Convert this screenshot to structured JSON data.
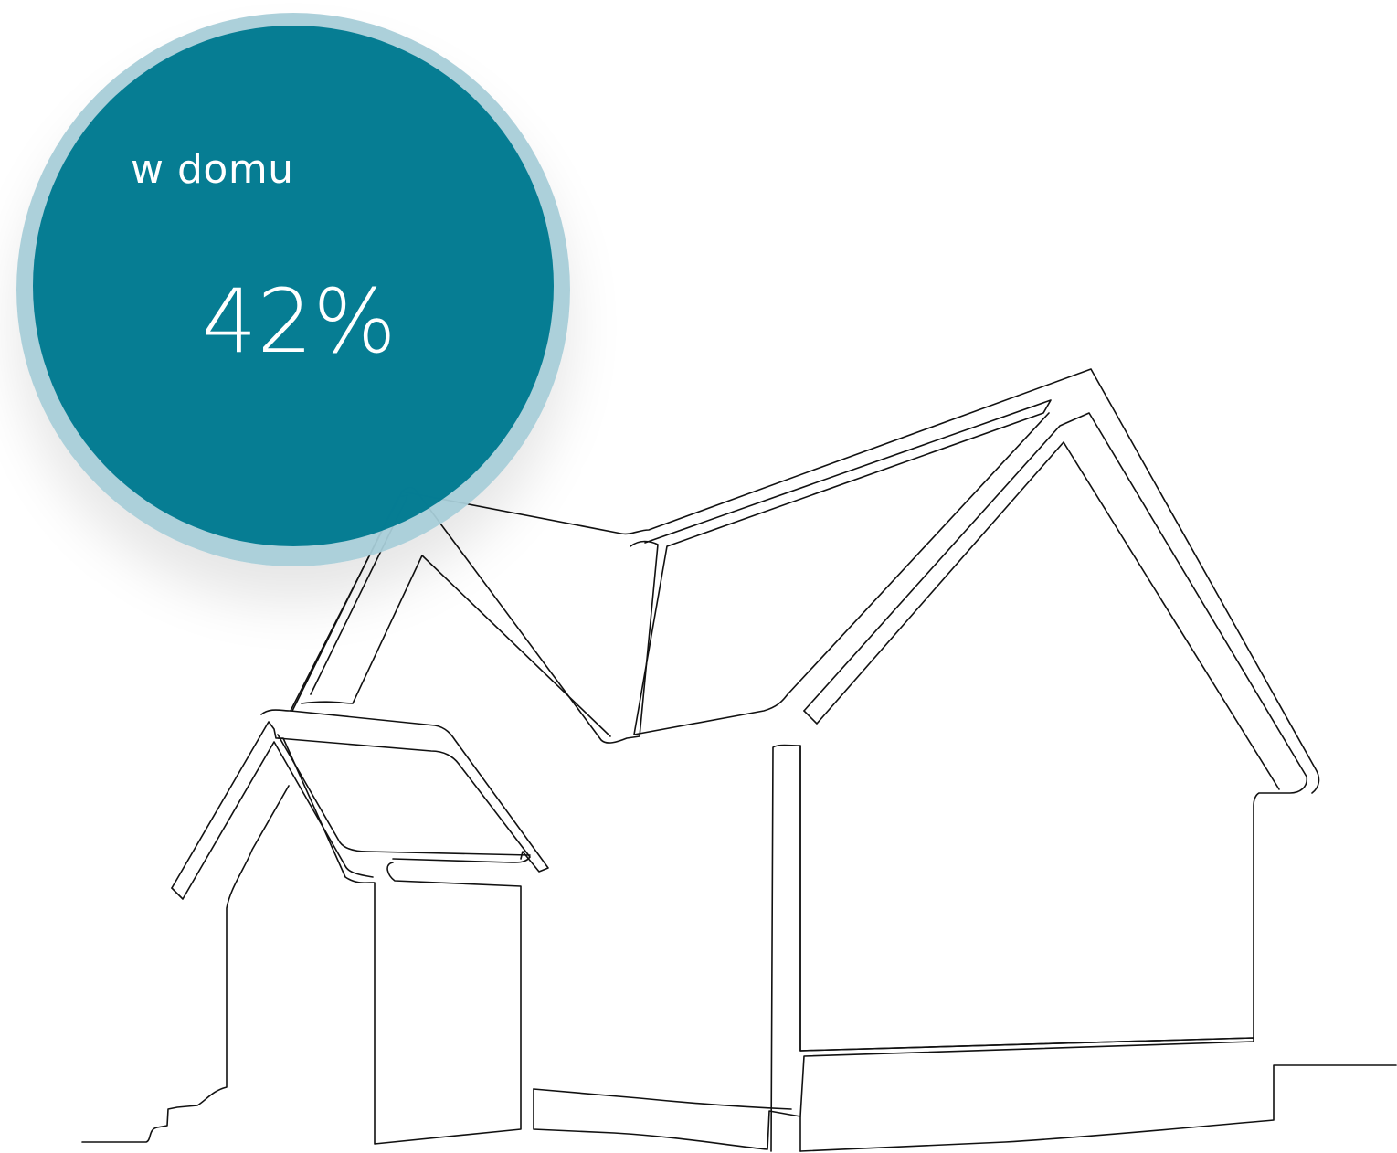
{
  "badge": {
    "label": "w domu",
    "value": "42%",
    "outer_color": "#a8ced8",
    "inner_color": "#007a91",
    "text_color": "#ffffff"
  },
  "illustration": {
    "icon": "house-line-drawing-icon",
    "stroke_color": "#111111"
  }
}
